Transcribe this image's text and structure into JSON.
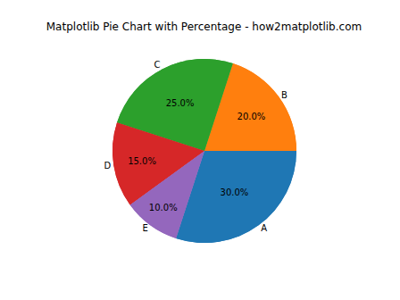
{
  "chart_data": {
    "type": "pie",
    "title": "Matplotlib Pie Chart with Percentage - how2matplotlib.com",
    "categories": [
      "A",
      "B",
      "C",
      "D",
      "E"
    ],
    "values": [
      30,
      20,
      25,
      15,
      10
    ],
    "value_labels": [
      "30.0%",
      "20.0%",
      "25.0%",
      "15.0%",
      "10.0%"
    ],
    "colors": [
      "#1f77b4",
      "#ff7f0e",
      "#2ca02c",
      "#d62728",
      "#9467bd"
    ],
    "data_labels": true
  }
}
